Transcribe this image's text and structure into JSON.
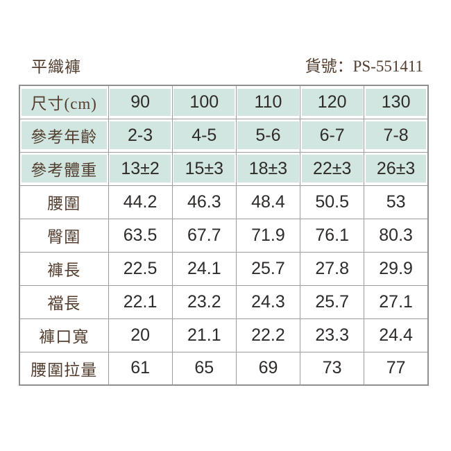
{
  "header": {
    "title": "平織褲",
    "code_label": "貨號：",
    "code_value": "PS-551411"
  },
  "table": {
    "rows": [
      {
        "label": "尺寸(cm)",
        "highlight": true,
        "values": [
          "90",
          "100",
          "110",
          "120",
          "130"
        ]
      },
      {
        "label": "參考年齡",
        "highlight": true,
        "values": [
          "2-3",
          "4-5",
          "5-6",
          "6-7",
          "7-8"
        ]
      },
      {
        "label": "參考體重",
        "highlight": true,
        "values": [
          "13±2",
          "15±3",
          "18±3",
          "22±3",
          "26±3"
        ]
      },
      {
        "label": "腰圍",
        "highlight": false,
        "values": [
          "44.2",
          "46.3",
          "48.4",
          "50.5",
          "53"
        ]
      },
      {
        "label": "臀圍",
        "highlight": false,
        "values": [
          "63.5",
          "67.7",
          "71.9",
          "76.1",
          "80.3"
        ]
      },
      {
        "label": "褲長",
        "highlight": false,
        "values": [
          "22.5",
          "24.1",
          "25.7",
          "27.8",
          "29.9"
        ]
      },
      {
        "label": "襠長",
        "highlight": false,
        "values": [
          "22.1",
          "23.2",
          "24.3",
          "25.7",
          "27.1"
        ]
      },
      {
        "label": "褲口寬",
        "highlight": false,
        "values": [
          "20",
          "21.1",
          "22.2",
          "23.3",
          "24.4"
        ]
      },
      {
        "label": "腰圍拉量",
        "highlight": false,
        "values": [
          "61",
          "65",
          "69",
          "73",
          "77"
        ]
      }
    ]
  },
  "colors": {
    "highlight_bg": "#d2e6e1",
    "border": "#9c9c9c",
    "border_outer": "#8f8f8f",
    "label_text": "#533d2e",
    "value_text": "#2e2b29"
  }
}
